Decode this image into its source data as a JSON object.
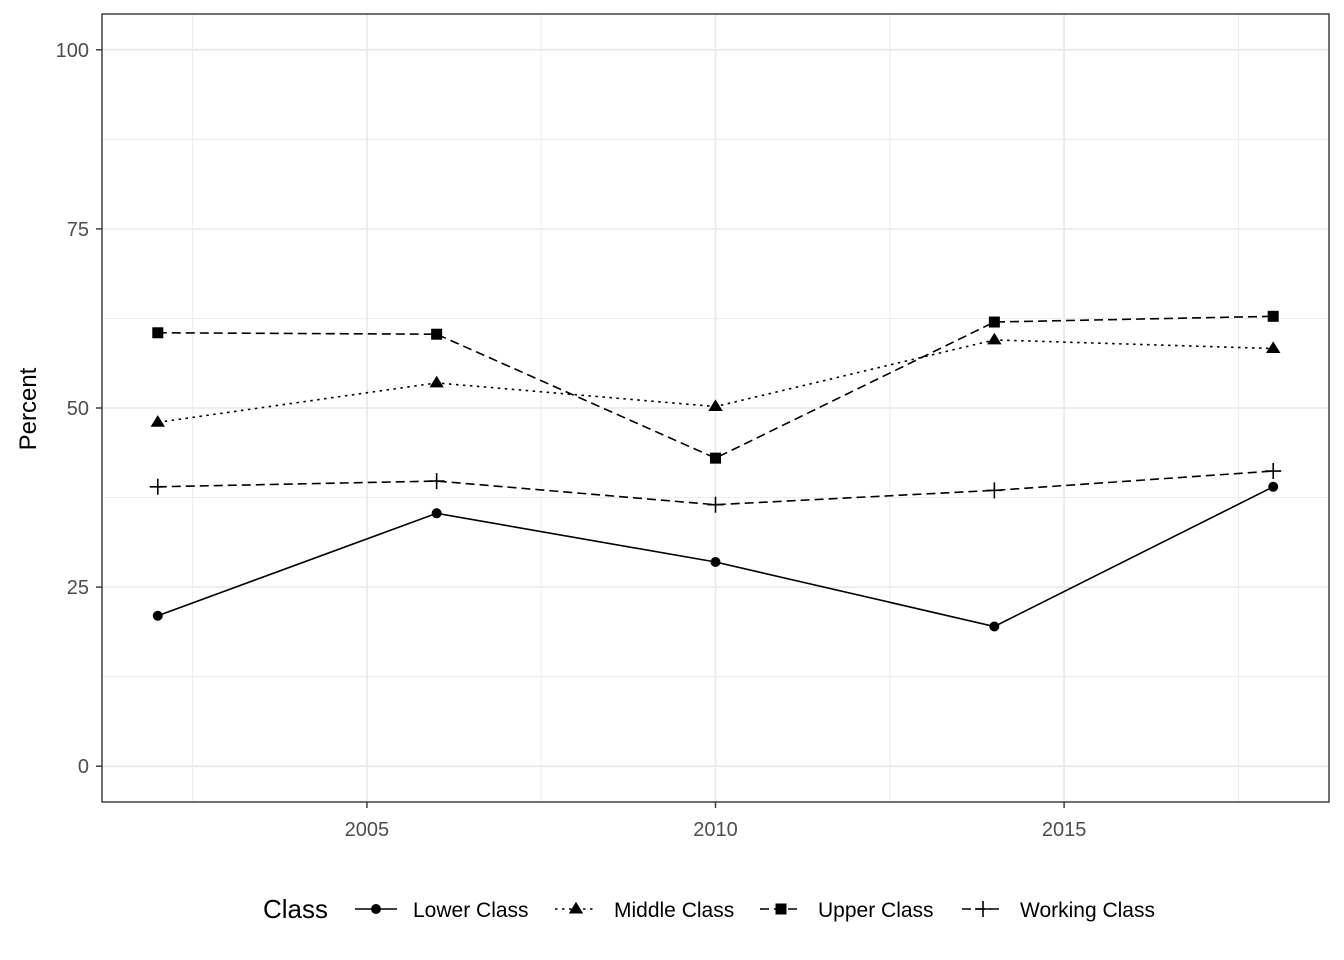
{
  "chart_data": {
    "type": "line",
    "title": "",
    "xlabel": "",
    "ylabel": "Percent",
    "xlim": [
      2001.2,
      2018.8
    ],
    "ylim": [
      -5,
      105
    ],
    "x_ticks": [
      2005,
      2010,
      2015
    ],
    "x_tick_labels": [
      "2005",
      "2010",
      "2015"
    ],
    "y_ticks": [
      0,
      25,
      50,
      75,
      100
    ],
    "y_tick_labels": [
      "0",
      "25",
      "50",
      "75",
      "100"
    ],
    "grid": true,
    "legend_title": "Class",
    "legend_position": "bottom",
    "x": [
      2002,
      2006,
      2010,
      2014,
      2018
    ],
    "series": [
      {
        "name": "Lower Class",
        "values": [
          21.0,
          35.3,
          28.5,
          19.5,
          39.0
        ],
        "dash": "solid",
        "marker": "circle"
      },
      {
        "name": "Middle Class",
        "values": [
          48.0,
          53.5,
          50.2,
          59.5,
          58.3
        ],
        "dash": "dotted",
        "marker": "triangle"
      },
      {
        "name": "Upper Class",
        "values": [
          60.5,
          60.3,
          43.0,
          62.0,
          62.8
        ],
        "dash": "dashed",
        "marker": "square"
      },
      {
        "name": "Working Class",
        "values": [
          39.0,
          39.8,
          36.5,
          38.5,
          41.2
        ],
        "dash": "dashed",
        "marker": "plus"
      }
    ],
    "colors": {
      "line": "#000000",
      "grid": "#ebebeb",
      "panel_border": "#333333",
      "tick_text": "#4d4d4d"
    }
  }
}
